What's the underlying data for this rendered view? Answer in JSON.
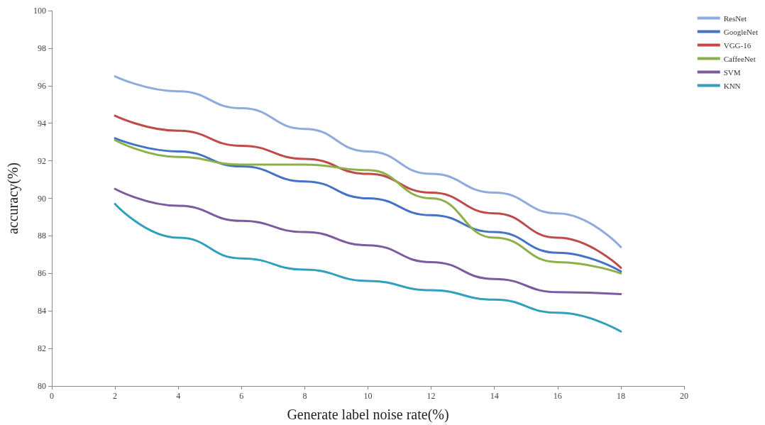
{
  "chart_data": {
    "type": "line",
    "xlabel": "Generate label noise rate(%)",
    "ylabel": "accuracy(%)",
    "x": [
      2,
      4,
      6,
      8,
      10,
      12,
      14,
      16,
      18
    ],
    "xlim": [
      0,
      20
    ],
    "xticks": [
      0,
      2,
      4,
      6,
      8,
      10,
      12,
      14,
      16,
      18,
      20
    ],
    "ylim": [
      80,
      100
    ],
    "yticks": [
      80,
      82,
      84,
      86,
      88,
      90,
      92,
      94,
      96,
      98,
      100
    ],
    "grid": false,
    "legend": "top right",
    "marker": "none",
    "line_style": "solid",
    "series": [
      {
        "name": "ResNet",
        "color": "#8faadc",
        "values": [
          96.5,
          95.7,
          94.8,
          93.7,
          92.5,
          91.3,
          90.3,
          89.2,
          87.4
        ]
      },
      {
        "name": "GoogleNet",
        "color": "#4472c4",
        "values": [
          93.2,
          92.5,
          91.7,
          90.9,
          90.0,
          89.1,
          88.2,
          87.1,
          86.1
        ]
      },
      {
        "name": "VGG-16",
        "color": "#be4b48",
        "values": [
          94.4,
          93.6,
          92.8,
          92.1,
          91.3,
          90.3,
          89.2,
          87.9,
          86.3
        ]
      },
      {
        "name": "CaffeeNet",
        "color": "#8db04a",
        "values": [
          93.1,
          92.2,
          91.8,
          91.8,
          91.5,
          90.0,
          87.9,
          86.6,
          86.0
        ]
      },
      {
        "name": "SVM",
        "color": "#7b5b9e",
        "values": [
          90.5,
          89.6,
          88.8,
          88.2,
          87.5,
          86.6,
          85.7,
          85.0,
          84.9
        ]
      },
      {
        "name": "KNN",
        "color": "#31a0bd",
        "values": [
          89.7,
          87.9,
          86.8,
          86.2,
          85.6,
          85.1,
          84.6,
          83.9,
          82.9
        ]
      }
    ]
  }
}
